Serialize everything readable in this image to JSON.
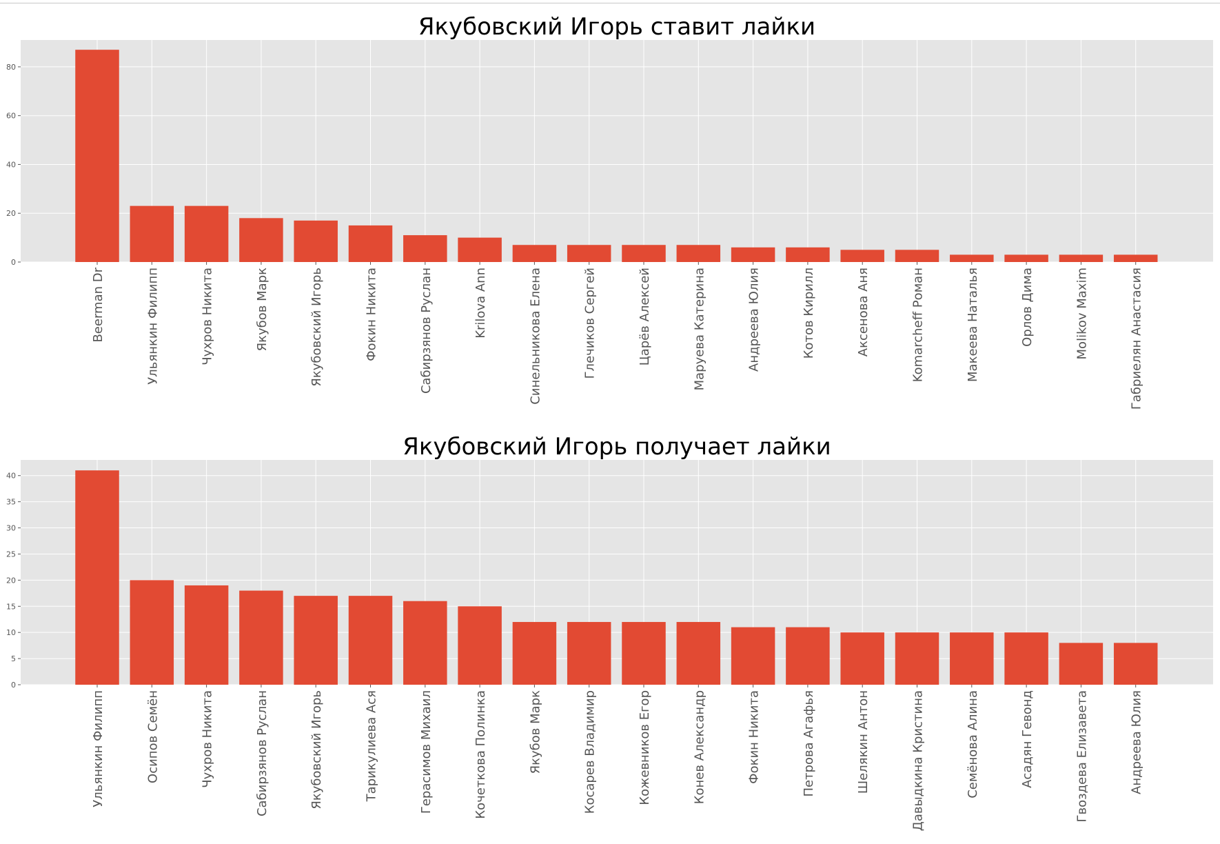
{
  "colors": {
    "bar": "#e24a33",
    "plot_background": "#e5e5e5",
    "grid": "#ffffff",
    "tick_text": "#555555"
  },
  "chart_data": [
    {
      "type": "bar",
      "title": "Якубовский Игорь ставит лайки",
      "xlabel": "",
      "ylabel": "",
      "ylim": [
        0,
        91
      ],
      "yticks": [
        0,
        20,
        40,
        60,
        80
      ],
      "grid": true,
      "categories": [
        "Beerman Dr",
        "Ульянкин Филипп",
        "Чухров Никита",
        "Якубов Марк",
        "Якубовский Игорь",
        "Фокин Никита",
        "Сабирзянов Руслан",
        "Krilova Ann",
        "Синельникова Елена",
        "Глечиков Сергей",
        "Царёв Алексей",
        "Маруева Катерина",
        "Андреева Юлия",
        "Котов Кирилл",
        "Аксенова Аня",
        "Komarcheff Роман",
        "Макеева Наталья",
        "Орлов Дима",
        "Molikov Maxim",
        "Габриелян Анастасия"
      ],
      "values": [
        87,
        23,
        23,
        18,
        17,
        15,
        11,
        10,
        7,
        7,
        7,
        7,
        6,
        6,
        5,
        5,
        3,
        3,
        3,
        3
      ]
    },
    {
      "type": "bar",
      "title": "Якубовский Игорь получает лайки",
      "xlabel": "",
      "ylabel": "",
      "ylim": [
        0,
        43
      ],
      "yticks": [
        0,
        5,
        10,
        15,
        20,
        25,
        30,
        35,
        40
      ],
      "grid": true,
      "categories": [
        "Ульянкин Филипп",
        "Осипов Семён",
        "Чухров Никита",
        "Сабирзянов Руслан",
        "Якубовский Игорь",
        "Тарикулиева Ася",
        "Герасимов Михаил",
        "Кочеткова Полинка",
        "Якубов Марк",
        "Косарев Владимир",
        "Кожевников Егор",
        "Конев Александр",
        "Фокин Никита",
        "Петрова Агафья",
        "Шелякин Антон",
        "Давыдкина Кристина",
        "Семёнова Алина",
        "Асадян Гевонд",
        "Гвоздева Елизавета",
        "Андреева Юлия"
      ],
      "values": [
        41,
        20,
        19,
        18,
        17,
        17,
        16,
        15,
        12,
        12,
        12,
        12,
        11,
        11,
        10,
        10,
        10,
        10,
        8,
        8
      ]
    }
  ]
}
